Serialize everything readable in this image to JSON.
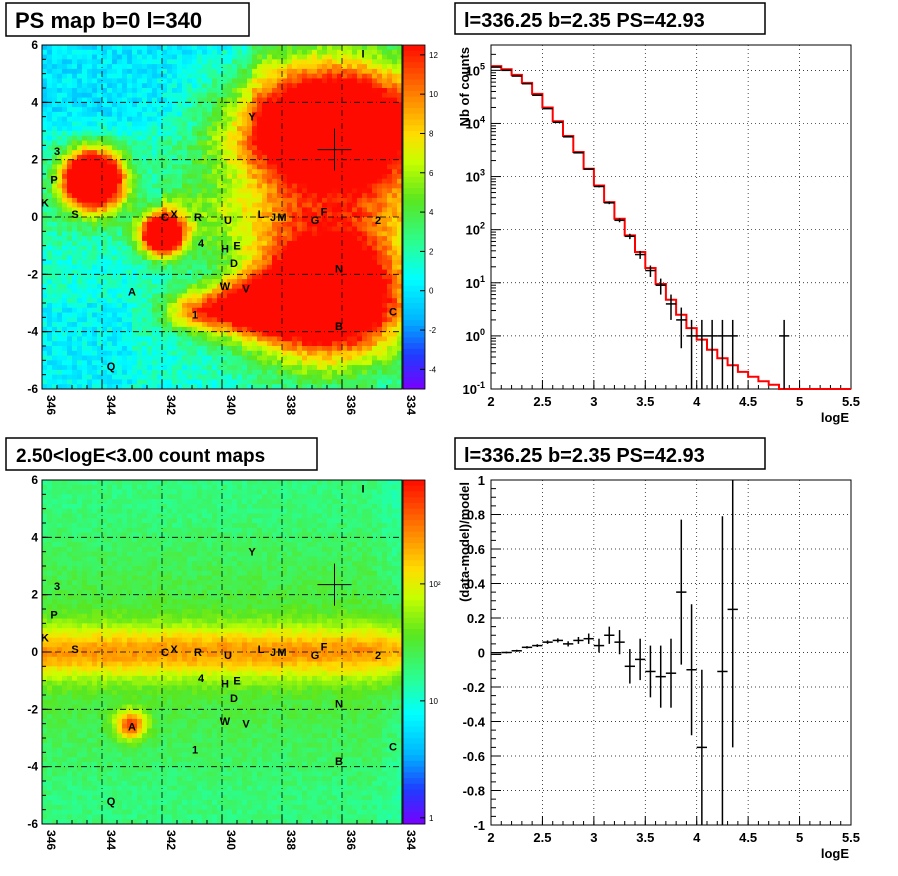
{
  "panels": {
    "ps_map": {
      "title": "PS map b=0 l=340",
      "x_ticks": [
        "346",
        "344",
        "342",
        "340",
        "338",
        "336",
        "334"
      ],
      "y_ticks": [
        "6",
        "4",
        "2",
        "0",
        "-2",
        "-4",
        "-6"
      ],
      "colorbar_ticks": [
        "12",
        "10",
        "8",
        "6",
        "4",
        "2",
        "0",
        "-2",
        "-4"
      ],
      "colorbar_range": [
        -5,
        12
      ]
    },
    "count_map": {
      "title": "2.50<logE<3.00 count maps",
      "x_ticks": [
        "346",
        "344",
        "342",
        "340",
        "338",
        "336",
        "334"
      ],
      "y_ticks": [
        "6",
        "4",
        "2",
        "0",
        "-2",
        "-4",
        "-6"
      ],
      "colorbar_ticks": [
        "10²",
        "10",
        "1"
      ],
      "colorbar_scale": "log"
    },
    "spectrum": {
      "title": "l=336.25 b=2.35 PS=42.93",
      "xlabel": "logE",
      "ylabel": "Nb of counts",
      "x_ticks": [
        "2",
        "2.5",
        "3",
        "3.5",
        "4",
        "4.5",
        "5",
        "5.5"
      ]
    },
    "residual": {
      "title": "l=336.25 b=2.35 PS=42.93",
      "xlabel": "logE",
      "ylabel": "(data-model)/model",
      "x_ticks": [
        "2",
        "2.5",
        "3",
        "3.5",
        "4",
        "4.5",
        "5",
        "5.5"
      ],
      "y_ticks": [
        "1",
        "0.8",
        "0.6",
        "0.4",
        "0.2",
        "0",
        "-0.2",
        "-0.4",
        "-0.6",
        "-0.8",
        "-1"
      ]
    }
  },
  "map_labels": [
    {
      "t": "I",
      "l": 335.3,
      "b": 5.7
    },
    {
      "t": "Y",
      "l": 339.0,
      "b": 3.5
    },
    {
      "t": "3",
      "l": 345.5,
      "b": 2.3
    },
    {
      "t": "P",
      "l": 345.6,
      "b": 1.3
    },
    {
      "t": "K",
      "l": 345.9,
      "b": 0.5
    },
    {
      "t": "S",
      "l": 344.9,
      "b": 0.1
    },
    {
      "t": "C",
      "l": 341.9,
      "b": 0.0
    },
    {
      "t": "X",
      "l": 341.6,
      "b": 0.1
    },
    {
      "t": "R",
      "l": 340.8,
      "b": 0.0
    },
    {
      "t": "U",
      "l": 339.8,
      "b": -0.1
    },
    {
      "t": "L",
      "l": 338.7,
      "b": 0.1
    },
    {
      "t": "J",
      "l": 338.3,
      "b": 0.0
    },
    {
      "t": "M",
      "l": 338.0,
      "b": 0.0
    },
    {
      "t": "G",
      "l": 336.9,
      "b": -0.1
    },
    {
      "t": "F",
      "l": 336.6,
      "b": 0.2
    },
    {
      "t": "2",
      "l": 334.8,
      "b": -0.1
    },
    {
      "t": "4",
      "l": 340.7,
      "b": -0.9
    },
    {
      "t": "H",
      "l": 339.9,
      "b": -1.1
    },
    {
      "t": "E",
      "l": 339.5,
      "b": -1.0
    },
    {
      "t": "D",
      "l": 339.6,
      "b": -1.6
    },
    {
      "t": "N",
      "l": 336.1,
      "b": -1.8
    },
    {
      "t": "A",
      "l": 343.0,
      "b": -2.6
    },
    {
      "t": "W",
      "l": 339.9,
      "b": -2.4
    },
    {
      "t": "V",
      "l": 339.2,
      "b": -2.5
    },
    {
      "t": "1",
      "l": 340.9,
      "b": -3.4
    },
    {
      "t": "C",
      "l": 334.3,
      "b": -3.3
    },
    {
      "t": "B",
      "l": 336.1,
      "b": -3.8
    },
    {
      "t": "Q",
      "l": 343.7,
      "b": -5.2
    }
  ],
  "crosshair": {
    "l": 336.25,
    "b": 2.35
  },
  "chart_data": [
    {
      "type": "heatmap",
      "title": "PS map b=0 l=340",
      "xlim": [
        346,
        334
      ],
      "ylim": [
        -6,
        6
      ],
      "zlim": [
        -5,
        12
      ],
      "colors": [
        "#7a00ff",
        "#0055ff",
        "#00ffff",
        "#55ff55",
        "#ffff00",
        "#ff8800",
        "#ff0000"
      ]
    },
    {
      "type": "heatmap",
      "title": "2.50<logE<3.00 count maps",
      "xlim": [
        346,
        334
      ],
      "ylim": [
        -6,
        6
      ],
      "zscale": "log"
    },
    {
      "type": "line",
      "title": "l=336.25 b=2.35 PS=42.93",
      "xlabel": "logE",
      "ylabel": "Nb of counts",
      "xlim": [
        2,
        5.5
      ],
      "ylim": [
        0.1,
        300000
      ],
      "yscale": "log",
      "grid": true,
      "model_color": "#ff0000",
      "data_color": "#000000",
      "model_steps": [
        {
          "x0": 2.0,
          "x1": 2.1,
          "y": 120000
        },
        {
          "x0": 2.1,
          "x1": 2.2,
          "y": 105000
        },
        {
          "x0": 2.2,
          "x1": 2.3,
          "y": 82000
        },
        {
          "x0": 2.3,
          "x1": 2.4,
          "y": 58000
        },
        {
          "x0": 2.4,
          "x1": 2.5,
          "y": 36000
        },
        {
          "x0": 2.5,
          "x1": 2.6,
          "y": 20000
        },
        {
          "x0": 2.6,
          "x1": 2.7,
          "y": 11000
        },
        {
          "x0": 2.7,
          "x1": 2.8,
          "y": 5800
        },
        {
          "x0": 2.8,
          "x1": 2.9,
          "y": 2900
        },
        {
          "x0": 2.9,
          "x1": 3.0,
          "y": 1400
        },
        {
          "x0": 3.0,
          "x1": 3.1,
          "y": 680
        },
        {
          "x0": 3.1,
          "x1": 3.2,
          "y": 330
        },
        {
          "x0": 3.2,
          "x1": 3.3,
          "y": 160
        },
        {
          "x0": 3.3,
          "x1": 3.4,
          "y": 78
        },
        {
          "x0": 3.4,
          "x1": 3.5,
          "y": 38
        },
        {
          "x0": 3.5,
          "x1": 3.6,
          "y": 19
        },
        {
          "x0": 3.6,
          "x1": 3.7,
          "y": 9.5
        },
        {
          "x0": 3.7,
          "x1": 3.8,
          "y": 4.8
        },
        {
          "x0": 3.8,
          "x1": 3.9,
          "y": 2.5
        },
        {
          "x0": 3.9,
          "x1": 4.0,
          "y": 1.4
        },
        {
          "x0": 4.0,
          "x1": 4.1,
          "y": 0.85
        },
        {
          "x0": 4.1,
          "x1": 4.2,
          "y": 0.55
        },
        {
          "x0": 4.2,
          "x1": 4.3,
          "y": 0.38
        },
        {
          "x0": 4.3,
          "x1": 4.4,
          "y": 0.28
        },
        {
          "x0": 4.4,
          "x1": 4.5,
          "y": 0.21
        },
        {
          "x0": 4.5,
          "x1": 4.6,
          "y": 0.17
        },
        {
          "x0": 4.6,
          "x1": 4.7,
          "y": 0.14
        },
        {
          "x0": 4.7,
          "x1": 4.8,
          "y": 0.12
        },
        {
          "x0": 4.8,
          "x1": 5.5,
          "y": 0.1
        }
      ],
      "data_points": [
        {
          "x": 2.05,
          "y": 115000
        },
        {
          "x": 2.15,
          "y": 100000
        },
        {
          "x": 2.25,
          "y": 78000
        },
        {
          "x": 2.35,
          "y": 56000
        },
        {
          "x": 2.45,
          "y": 34000
        },
        {
          "x": 2.55,
          "y": 19000
        },
        {
          "x": 2.65,
          "y": 10500
        },
        {
          "x": 2.75,
          "y": 5600
        },
        {
          "x": 2.85,
          "y": 2800
        },
        {
          "x": 2.95,
          "y": 1380
        },
        {
          "x": 3.05,
          "y": 650
        },
        {
          "x": 3.15,
          "y": 320
        },
        {
          "x": 3.25,
          "y": 150
        },
        {
          "x": 3.35,
          "y": 75
        },
        {
          "x": 3.45,
          "y": 34
        },
        {
          "x": 3.55,
          "y": 17
        },
        {
          "x": 3.65,
          "y": 9
        },
        {
          "x": 3.75,
          "y": 4
        },
        {
          "x": 3.85,
          "y": 2
        },
        {
          "x": 3.95,
          "y": 1
        },
        {
          "x": 4.05,
          "y": 1
        },
        {
          "x": 4.15,
          "y": 1
        },
        {
          "x": 4.25,
          "y": 1
        },
        {
          "x": 4.35,
          "y": 1
        },
        {
          "x": 4.85,
          "y": 1
        }
      ]
    },
    {
      "type": "scatter",
      "title": "l=336.25 b=2.35 PS=42.93",
      "xlabel": "logE",
      "ylabel": "(data-model)/model",
      "xlim": [
        2,
        5.5
      ],
      "ylim": [
        -1,
        1
      ],
      "grid": true,
      "points": [
        {
          "x": 2.05,
          "y": -0.01,
          "err": 0.004
        },
        {
          "x": 2.15,
          "y": 0.0,
          "err": 0.005
        },
        {
          "x": 2.25,
          "y": 0.01,
          "err": 0.006
        },
        {
          "x": 2.35,
          "y": 0.03,
          "err": 0.007
        },
        {
          "x": 2.45,
          "y": 0.04,
          "err": 0.008
        },
        {
          "x": 2.55,
          "y": 0.06,
          "err": 0.01
        },
        {
          "x": 2.65,
          "y": 0.07,
          "err": 0.012
        },
        {
          "x": 2.75,
          "y": 0.05,
          "err": 0.015
        },
        {
          "x": 2.85,
          "y": 0.07,
          "err": 0.02
        },
        {
          "x": 2.95,
          "y": 0.08,
          "err": 0.03
        },
        {
          "x": 3.05,
          "y": 0.04,
          "err": 0.04
        },
        {
          "x": 3.15,
          "y": 0.1,
          "err": 0.05
        },
        {
          "x": 3.25,
          "y": 0.06,
          "err": 0.07
        },
        {
          "x": 3.35,
          "y": -0.08,
          "err": 0.1
        },
        {
          "x": 3.45,
          "y": -0.04,
          "err": 0.12
        },
        {
          "x": 3.55,
          "y": -0.11,
          "err": 0.15
        },
        {
          "x": 3.65,
          "y": -0.14,
          "err": 0.18
        },
        {
          "x": 3.75,
          "y": -0.12,
          "err": 0.2
        },
        {
          "x": 3.85,
          "y": 0.35,
          "err": 0.42
        },
        {
          "x": 3.95,
          "y": -0.1,
          "err": 0.38
        },
        {
          "x": 4.05,
          "y": -0.55,
          "err": 0.45
        },
        {
          "x": 4.25,
          "y": -0.11,
          "err": 0.9
        },
        {
          "x": 4.35,
          "y": 0.25,
          "err": 0.8
        }
      ]
    }
  ]
}
